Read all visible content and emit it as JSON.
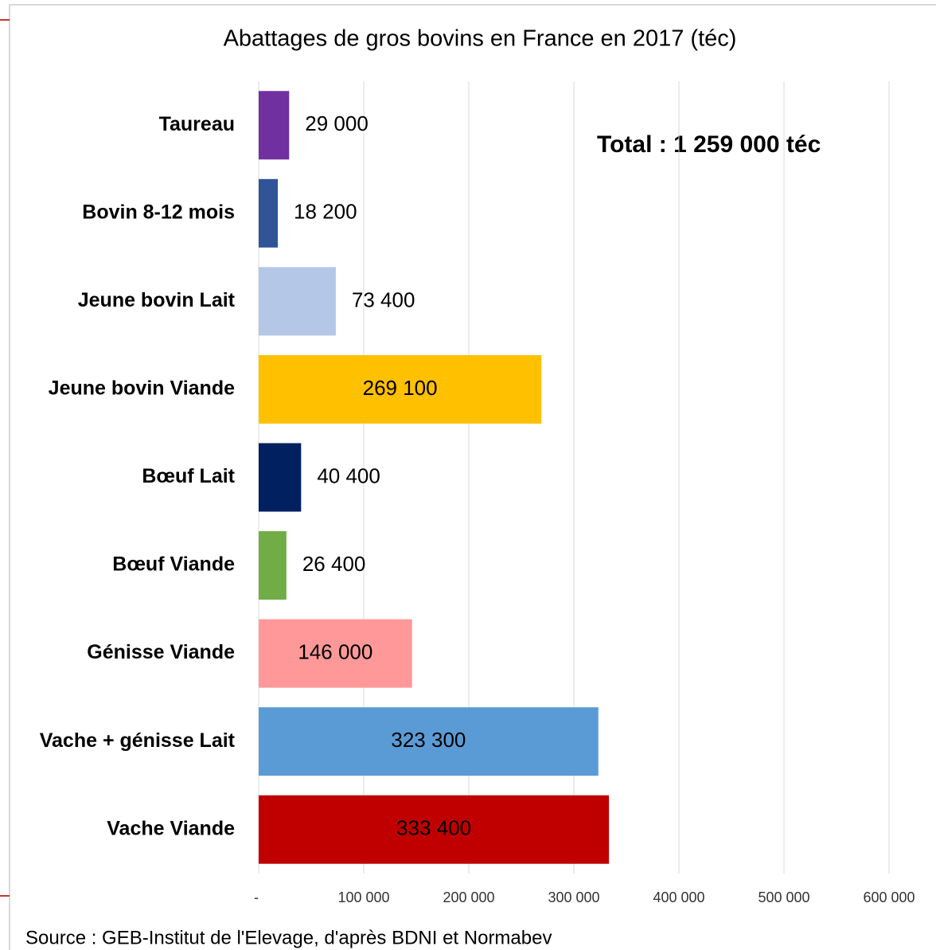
{
  "chart_data": {
    "type": "barh",
    "title": "Abattages de gros bovins en France en 2017 (téc)",
    "annotation": "Total : 1 259 000 téc",
    "source": "Source : GEB-Institut de l'Elevage, d'après BDNI et Normabev",
    "categories": [
      "Taureau",
      "Bovin 8-12 mois",
      "Jeune bovin Lait",
      "Jeune bovin Viande",
      "Bœuf Lait",
      "Bœuf Viande",
      "Génisse Viande",
      "Vache + génisse Lait",
      "Vache Viande"
    ],
    "values": [
      29000,
      18200,
      73400,
      269100,
      40400,
      26400,
      146000,
      323300,
      333400
    ],
    "value_labels": [
      "29 000",
      "18 200",
      "73 400",
      "269 100",
      "40 400",
      "26 400",
      "146 000",
      "323 300",
      "333 400"
    ],
    "colors": [
      "#7030a0",
      "#305496",
      "#b4c7e7",
      "#ffc000",
      "#002060",
      "#70ad47",
      "#ff9999",
      "#5b9bd5",
      "#c00000"
    ],
    "xlim": [
      0,
      600000
    ],
    "xticks": [
      {
        "value": 0,
        "label": "-"
      },
      {
        "value": 100000,
        "label": "100 000"
      },
      {
        "value": 200000,
        "label": "200 000"
      },
      {
        "value": 300000,
        "label": "300 000"
      },
      {
        "value": 400000,
        "label": "400 000"
      },
      {
        "value": 500000,
        "label": "500 000"
      },
      {
        "value": 600000,
        "label": "600 000"
      }
    ],
    "grid": true
  }
}
